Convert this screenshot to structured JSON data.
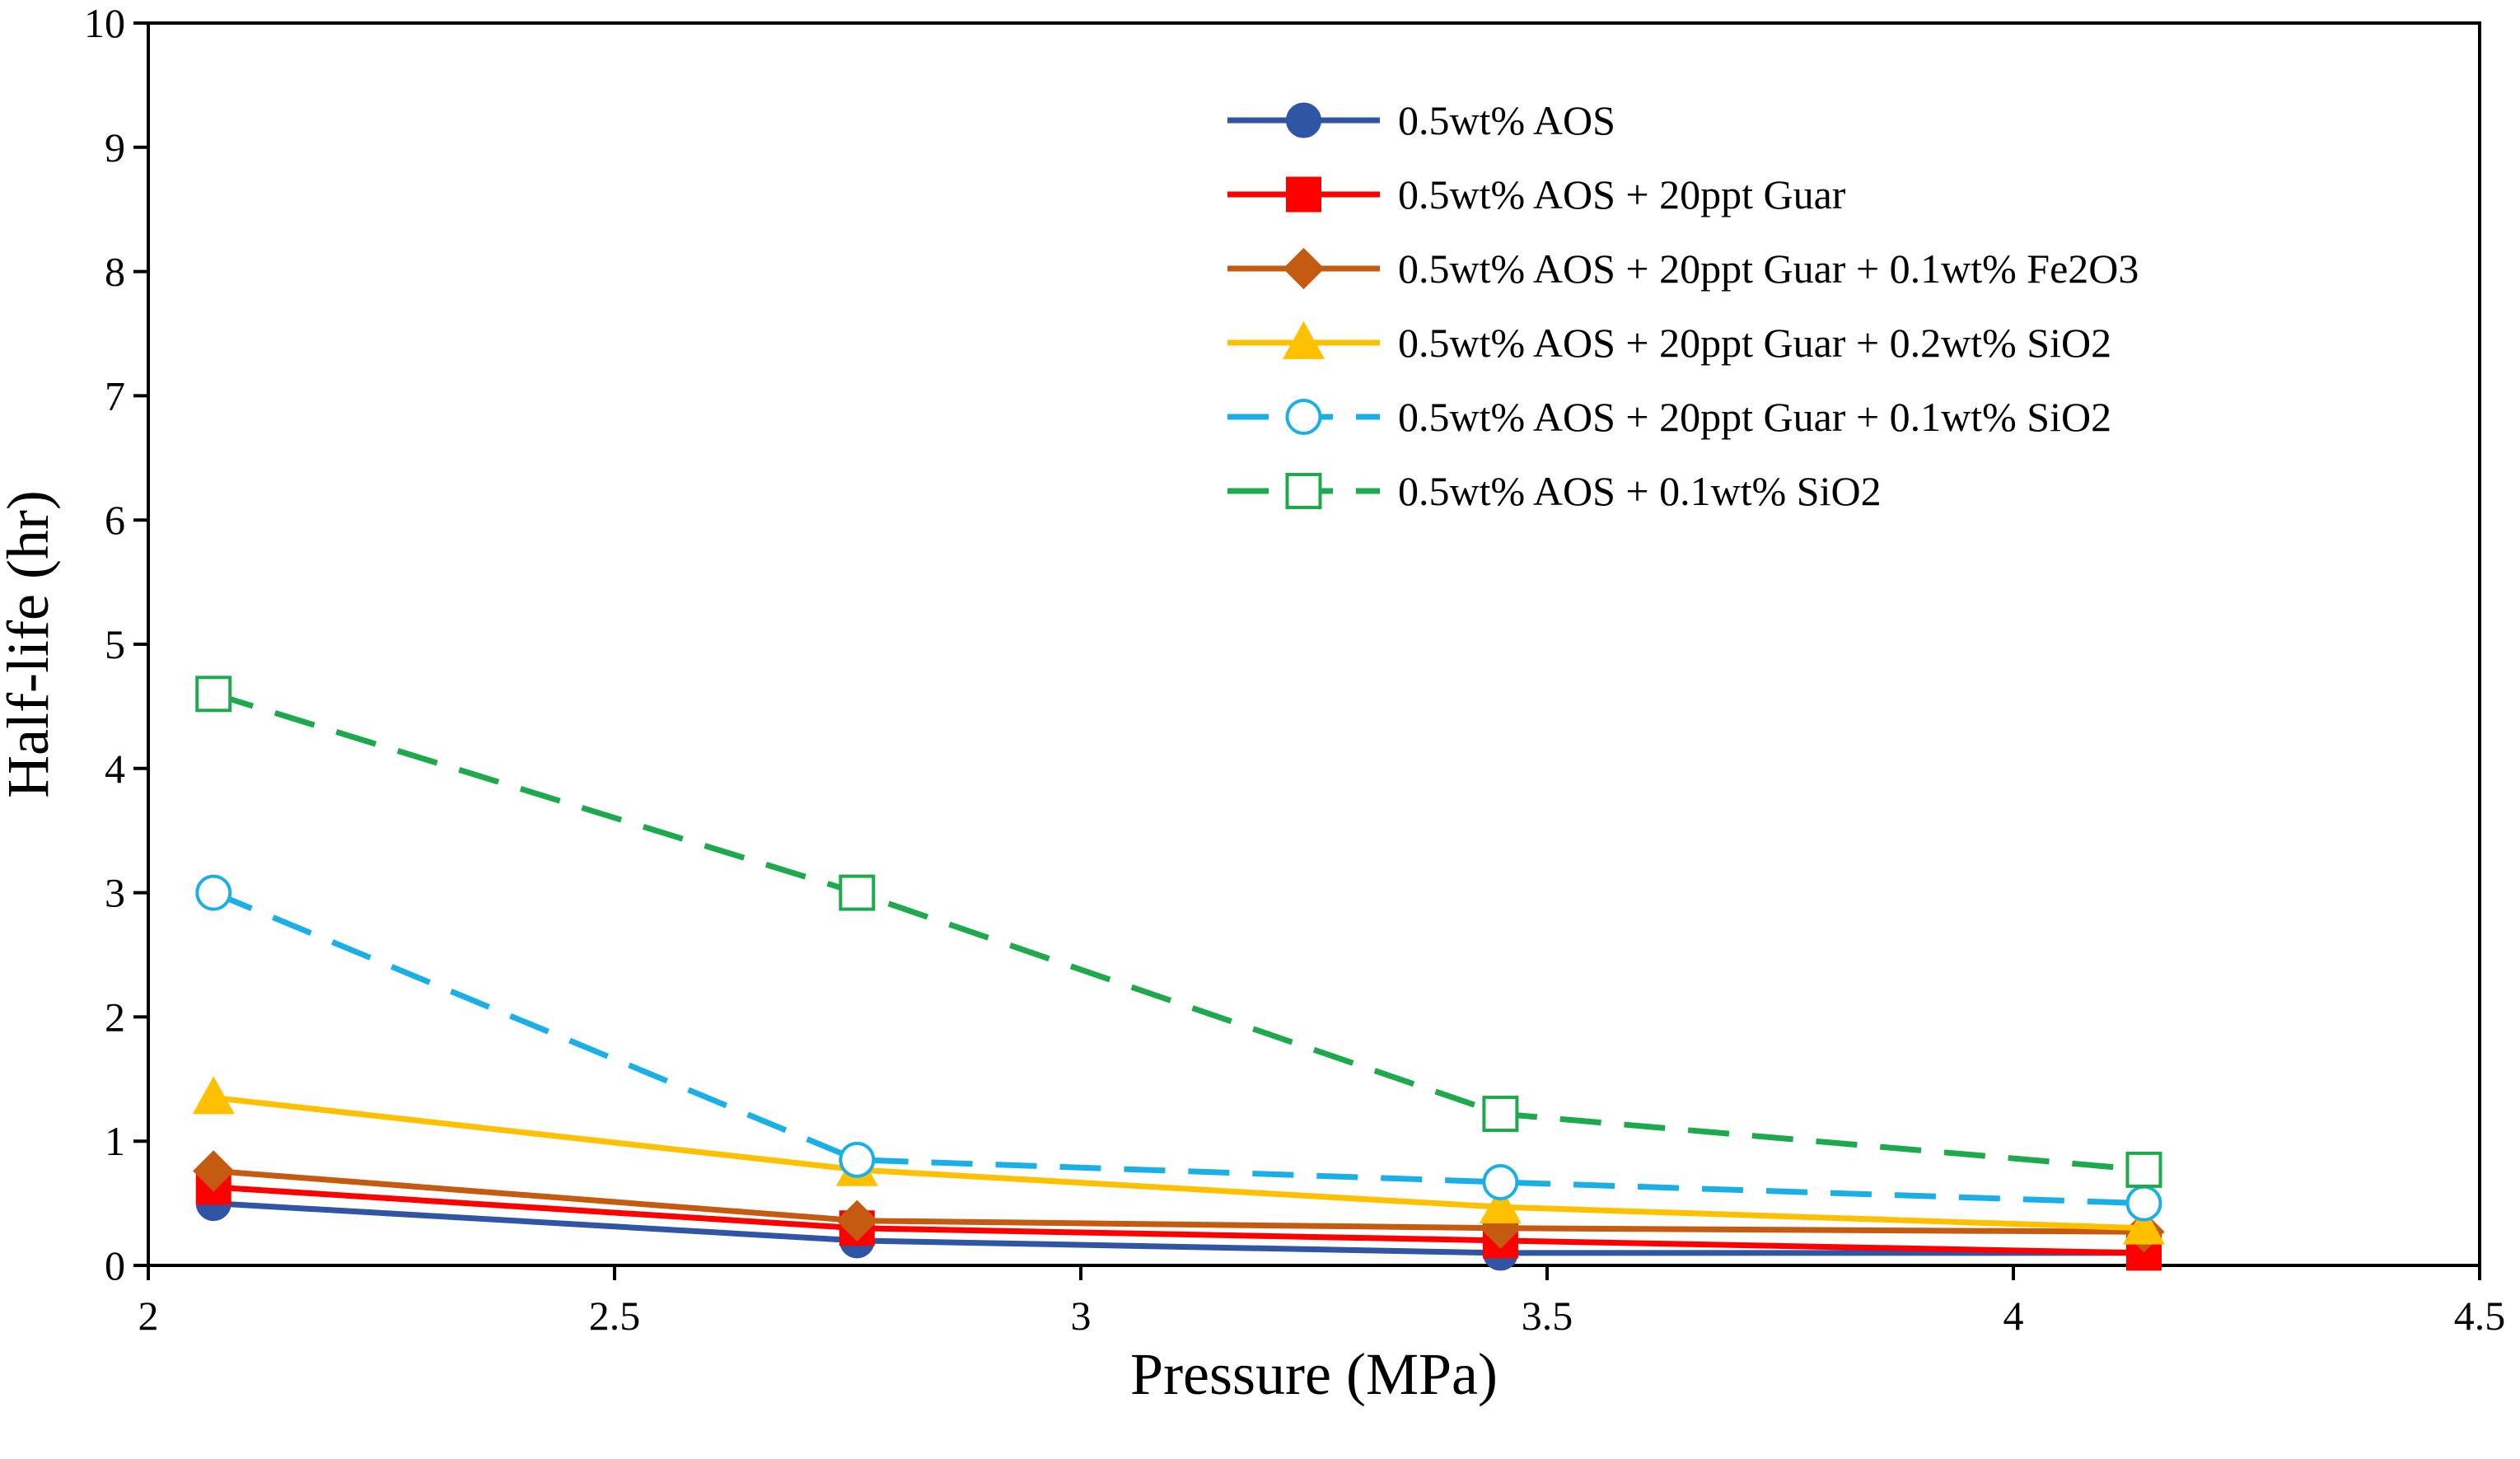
{
  "chart_data": {
    "type": "line",
    "xlabel": "Pressure (MPa)",
    "ylabel": "Half-life (hr)",
    "xlim": [
      2,
      4.5
    ],
    "ylim": [
      0,
      10
    ],
    "x_ticks": [
      "2",
      "2.5",
      "3",
      "3.5",
      "4",
      "4.5"
    ],
    "y_ticks": [
      "0",
      "1",
      "2",
      "3",
      "4",
      "5",
      "6",
      "7",
      "8",
      "9",
      "10"
    ],
    "grid": false,
    "legend_position": "top-right",
    "x": [
      2.07,
      2.76,
      3.45,
      4.14
    ],
    "series": [
      {
        "name": "0.5wt% AOS",
        "values": [
          0.5,
          0.2,
          0.1,
          0.1
        ],
        "color": "#2F55A4",
        "marker": "circle-filled",
        "dash": "solid"
      },
      {
        "name": "0.5wt% AOS + 20ppt Guar",
        "values": [
          0.63,
          0.3,
          0.2,
          0.1
        ],
        "color": "#FF0000",
        "marker": "square-filled",
        "dash": "solid"
      },
      {
        "name": "0.5wt% AOS + 20ppt Guar + 0.1wt% Fe2O3",
        "values": [
          0.76,
          0.36,
          0.3,
          0.27
        ],
        "color": "#C55A11",
        "marker": "diamond-filled",
        "dash": "solid"
      },
      {
        "name": "0.5wt% AOS + 20ppt Guar + 0.2wt% SiO2",
        "values": [
          1.35,
          0.77,
          0.47,
          0.3
        ],
        "color": "#FFC000",
        "marker": "triangle-filled",
        "dash": "solid"
      },
      {
        "name": "0.5wt% AOS + 20ppt Guar + 0.1wt% SiO2",
        "values": [
          3.0,
          0.85,
          0.67,
          0.5
        ],
        "color": "#1AAFE6",
        "marker": "circle-open",
        "dash": "dashed"
      },
      {
        "name": "0.5wt% AOS + 0.1wt% SiO2",
        "values": [
          4.6,
          3.0,
          1.22,
          0.77
        ],
        "color": "#1DAA4C",
        "marker": "square-open",
        "dash": "dashed"
      }
    ]
  }
}
